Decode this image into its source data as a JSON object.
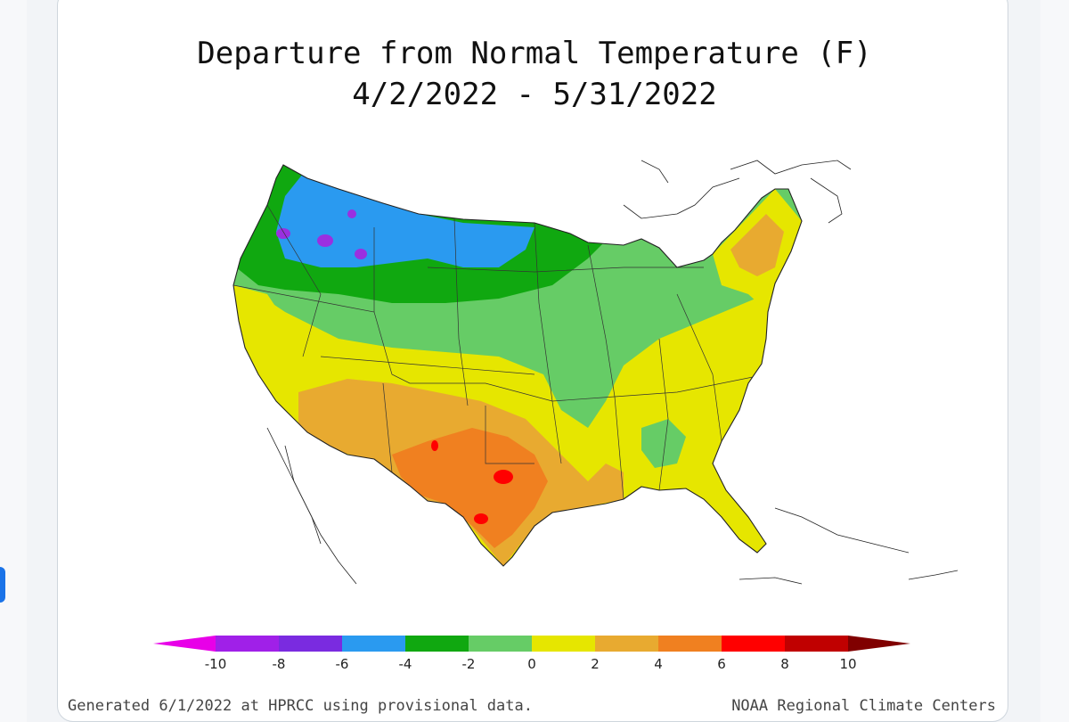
{
  "map": {
    "title": "Departure from Normal Temperature (F)",
    "date_range": "4/2/2022 - 5/31/2022",
    "footer_left": "Generated 6/1/2022 at HPRCC using provisional data.",
    "footer_right": "NOAA Regional Climate Centers"
  },
  "legend": {
    "ticks": [
      "-10",
      "-8",
      "-6",
      "-4",
      "-2",
      "0",
      "2",
      "4",
      "6",
      "8",
      "10"
    ],
    "colors": [
      "#e800e8",
      "#a020e8",
      "#7a2be0",
      "#2a9af0",
      "#10a810",
      "#66cc66",
      "#e6e600",
      "#e8aa30",
      "#f08020",
      "#ff0000",
      "#c00000",
      "#800000"
    ]
  },
  "palette": {
    "magenta": "#e800e8",
    "purple": "#9a30e0",
    "blue": "#2a9af0",
    "dark_green": "#10a810",
    "light_green": "#66cc66",
    "yellow": "#e6e600",
    "light_orange": "#e8aa30",
    "orange": "#f08020",
    "red": "#ff0000",
    "outline": "#222222"
  }
}
